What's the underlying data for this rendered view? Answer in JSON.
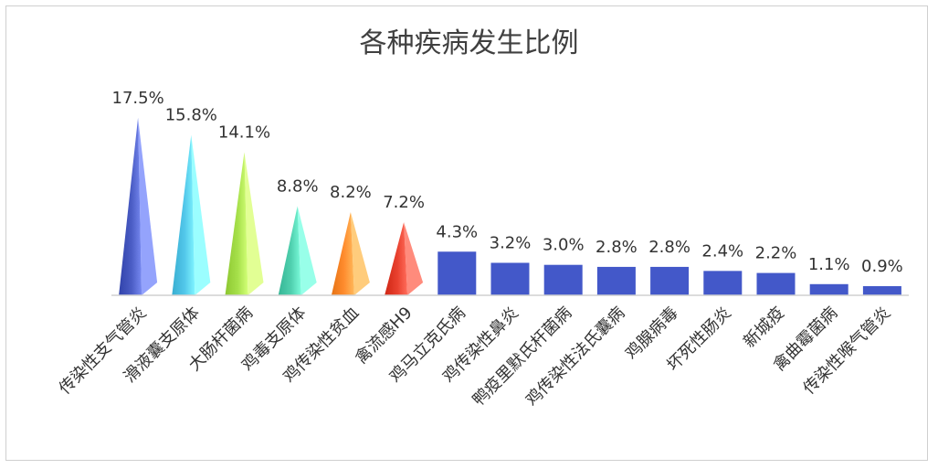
{
  "chart_data": {
    "type": "bar",
    "title": "各种疾病发生比例",
    "categories": [
      "传染性支气管炎",
      "滑液囊支原体",
      "大肠杆菌病",
      "鸡毒支原体",
      "鸡传染性贫血",
      "禽流感H9",
      "鸡马立克氏病",
      "鸡传染性鼻炎",
      "鸭疫里默氏杆菌病",
      "鸡传染性法氏囊病",
      "鸡腺病毒",
      "坏死性肠炎",
      "新城疫",
      "禽曲霉菌病",
      "传染性喉气管炎"
    ],
    "values": [
      17.5,
      15.8,
      14.1,
      8.8,
      8.2,
      7.2,
      4.3,
      3.2,
      3.0,
      2.8,
      2.8,
      2.4,
      2.2,
      1.1,
      0.9
    ],
    "value_labels": [
      "17.5%",
      "15.8%",
      "14.1%",
      "8.8%",
      "8.2%",
      "7.2%",
      "4.3%",
      "3.2%",
      "3.0%",
      "2.8%",
      "2.8%",
      "2.4%",
      "2.2%",
      "1.1%",
      "0.9%"
    ],
    "mark_shapes": [
      "pyramid",
      "pyramid",
      "pyramid",
      "pyramid",
      "pyramid",
      "pyramid",
      "bar",
      "bar",
      "bar",
      "bar",
      "bar",
      "bar",
      "bar",
      "bar",
      "bar"
    ],
    "colors": [
      "#4a5cc4",
      "#52c7ea",
      "#a6e04a",
      "#4fcfae",
      "#ff8c2e",
      "#e8402e",
      "#4358c9",
      "#4358c9",
      "#4358c9",
      "#4358c9",
      "#4358c9",
      "#4358c9",
      "#4358c9",
      "#4358c9",
      "#4358c9"
    ],
    "xlabel": "",
    "ylabel": "",
    "ylim": [
      0,
      18
    ],
    "grid": false,
    "legend": "none"
  }
}
